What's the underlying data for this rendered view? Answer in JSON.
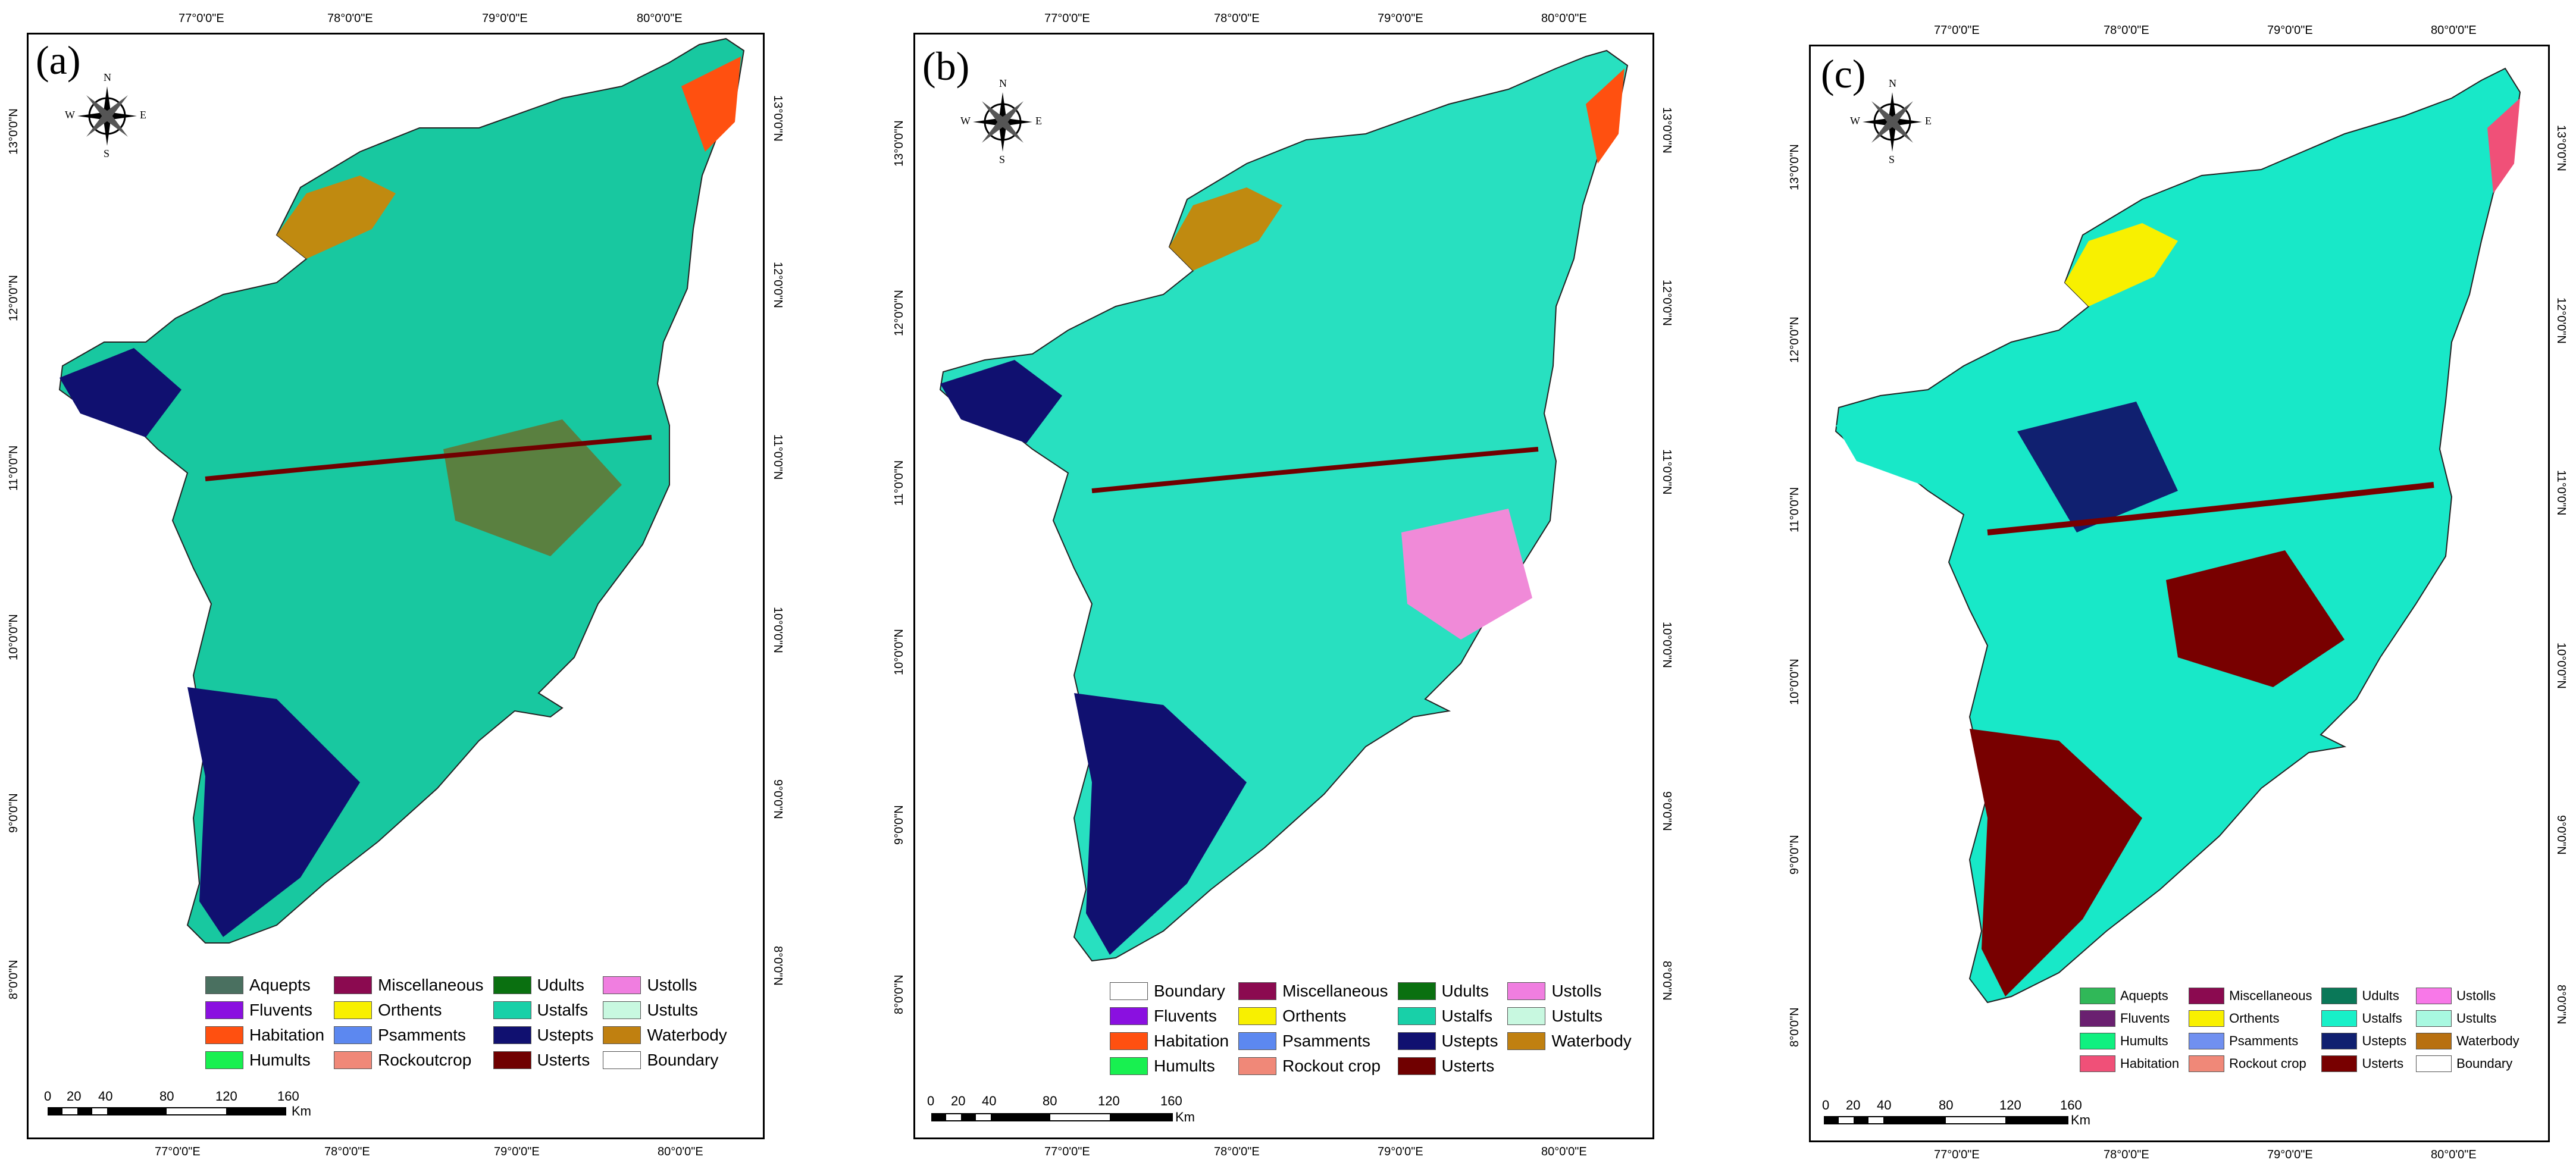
{
  "panels": [
    {
      "label": "(a)",
      "lon_ticks": [
        "77°0'0\"E",
        "78°0'0\"E",
        "79°0'0\"E",
        "80°0'0\"E"
      ],
      "lat_ticks": [
        "13°0'0\"N",
        "12°0'0\"N",
        "11°0'0\"N",
        "10°0'0\"N",
        "9°0'0\"N",
        "8°0'0\"N"
      ],
      "compass": {
        "n": "N",
        "s": "S",
        "e": "E",
        "w": "W"
      },
      "legend": [
        {
          "label": "Aquepts",
          "color": "#4a7060"
        },
        {
          "label": "Miscellaneous",
          "color": "#8b0a50"
        },
        {
          "label": "Udults",
          "color": "#0a7010"
        },
        {
          "label": "Ustolls",
          "color": "#f07ee0"
        },
        {
          "label": "Fluvents",
          "color": "#8a10e0"
        },
        {
          "label": "Orthents",
          "color": "#f8f000"
        },
        {
          "label": "Ustalfs",
          "color": "#18d0a8"
        },
        {
          "label": "Ustults",
          "color": "#c8f8e0"
        },
        {
          "label": "Habitation",
          "color": "#ff5010"
        },
        {
          "label": "Psamments",
          "color": "#5c88f0"
        },
        {
          "label": "Ustepts",
          "color": "#101070"
        },
        {
          "label": "Waterbody",
          "color": "#c08010"
        },
        {
          "label": "Humults",
          "color": "#18f050"
        },
        {
          "label": "Rockoutcrop",
          "color": "#f08878"
        },
        {
          "label": "Usterts",
          "color": "#700000"
        },
        {
          "label": "Boundary",
          "color": "#ffffff"
        }
      ],
      "scale": {
        "labels": [
          "0",
          "20",
          "40",
          "80",
          "120",
          "160"
        ],
        "unit": "Km"
      }
    },
    {
      "label": "(b)",
      "lon_ticks": [
        "77°0'0\"E",
        "78°0'0\"E",
        "79°0'0\"E",
        "80°0'0\"E"
      ],
      "lat_ticks": [
        "13°0'0\"N",
        "12°0'0\"N",
        "11°0'0\"N",
        "10°0'0\"N",
        "9°0'0\"N",
        "8°0'0\"N"
      ],
      "compass": {
        "n": "N",
        "s": "S",
        "e": "E",
        "w": "W"
      },
      "legend": [
        {
          "label": "Boundary",
          "color": "#ffffff"
        },
        {
          "label": "Miscellaneous",
          "color": "#8b0a50"
        },
        {
          "label": "Udults",
          "color": "#0a7010"
        },
        {
          "label": "Ustolls",
          "color": "#f07ee0"
        },
        {
          "label": "Fluvents",
          "color": "#8a10e0"
        },
        {
          "label": "Orthents",
          "color": "#f8f000"
        },
        {
          "label": "Ustalfs",
          "color": "#18d0a8"
        },
        {
          "label": "Ustults",
          "color": "#c8f8e0"
        },
        {
          "label": "Habitation",
          "color": "#ff5010"
        },
        {
          "label": "Psamments",
          "color": "#5c88f0"
        },
        {
          "label": "Ustepts",
          "color": "#101070"
        },
        {
          "label": "Waterbody",
          "color": "#c08010"
        },
        {
          "label": "Humults",
          "color": "#18f050"
        },
        {
          "label": "Rockout crop",
          "color": "#f08878"
        },
        {
          "label": "Usterts",
          "color": "#700000"
        }
      ],
      "scale": {
        "labels": [
          "0",
          "20",
          "40",
          "80",
          "120",
          "160"
        ],
        "unit": "Km"
      }
    },
    {
      "label": "(c)",
      "lon_ticks": [
        "77°0'0\"E",
        "78°0'0\"E",
        "79°0'0\"E",
        "80°0'0\"E"
      ],
      "lat_ticks": [
        "13°0'0\"N",
        "12°0'0\"N",
        "11°0'0\"N",
        "10°0'0\"N",
        "9°0'0\"N",
        "8°0'0\"N"
      ],
      "compass": {
        "n": "N",
        "s": "S",
        "e": "E",
        "w": "W"
      },
      "legend": [
        {
          "label": "Aquepts",
          "color": "#30b858"
        },
        {
          "label": "Miscellaneous",
          "color": "#8b0a50"
        },
        {
          "label": "Udults",
          "color": "#0a7858"
        },
        {
          "label": "Ustolls",
          "color": "#f878e8"
        },
        {
          "label": "Fluvents",
          "color": "#6a2070"
        },
        {
          "label": "Orthents",
          "color": "#f8f000"
        },
        {
          "label": "Ustalfs",
          "color": "#18f0c8"
        },
        {
          "label": "Ustults",
          "color": "#a8f8e0"
        },
        {
          "label": "Humults",
          "color": "#10f080"
        },
        {
          "label": "Psamments",
          "color": "#7090f0"
        },
        {
          "label": "Ustepts",
          "color": "#102070"
        },
        {
          "label": "Waterbody",
          "color": "#b87010"
        },
        {
          "label": "Habitation",
          "color": "#f05078"
        },
        {
          "label": "Rockout crop",
          "color": "#f08878"
        },
        {
          "label": "Usterts",
          "color": "#780000"
        },
        {
          "label": "Boundary",
          "color": "#ffffff"
        }
      ],
      "scale": {
        "labels": [
          "0",
          "20",
          "40",
          "80",
          "120",
          "160"
        ],
        "unit": "Km"
      }
    }
  ]
}
